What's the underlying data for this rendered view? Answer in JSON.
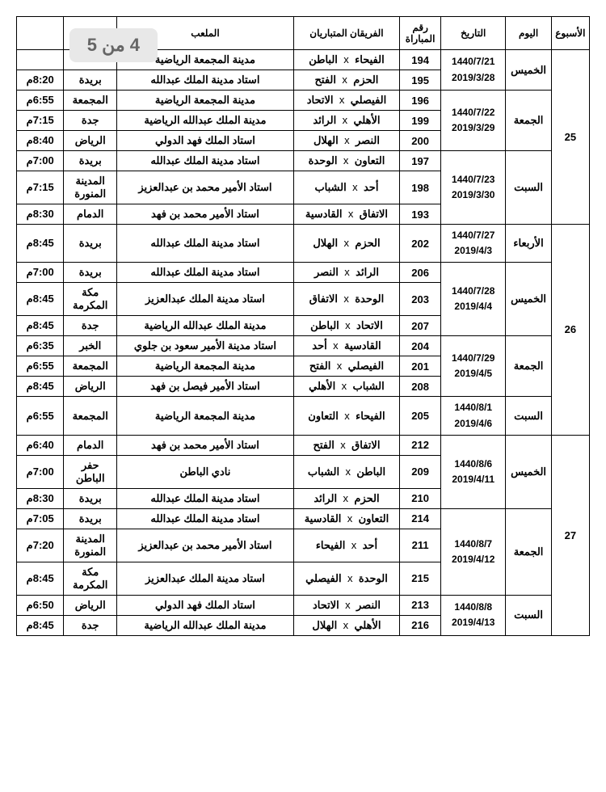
{
  "pageBadge": "4 من 5",
  "headers": {
    "week": "الأسبوع",
    "day": "اليوم",
    "date": "التاريخ",
    "matchNo": "رقم المباراة",
    "teams": "الفريقان المتباريان",
    "stadium": "الملعب",
    "city": "",
    "time": ""
  },
  "rows": [
    {
      "week": "25",
      "day": "الخميس",
      "date1": "1440/7/21",
      "date2": "2019/3/28",
      "no": "194",
      "t1": "الفيحاء",
      "t2": "الباطن",
      "stad": "مدينة المجمعة الرياضية",
      "city": "",
      "time": ""
    },
    {
      "no": "195",
      "t1": "الحزم",
      "t2": "الفتح",
      "stad": "استاد مدينة الملك عبدالله",
      "city": "بريدة",
      "time": "8:20م"
    },
    {
      "day": "الجمعة",
      "date1": "1440/7/22",
      "date2": "2019/3/29",
      "no": "196",
      "t1": "الفيصلي",
      "t2": "الاتحاد",
      "stad": "مدينة المجمعة الرياضية",
      "city": "المجمعة",
      "time": "6:55م"
    },
    {
      "no": "199",
      "t1": "الأهلي",
      "t2": "الرائد",
      "stad": "مدينة الملك عبدالله الرياضية",
      "city": "جدة",
      "time": "7:15م"
    },
    {
      "no": "200",
      "t1": "النصر",
      "t2": "الهلال",
      "stad": "استاد الملك فهد الدولي",
      "city": "الرياض",
      "time": "8:40م"
    },
    {
      "day": "السبت",
      "date1": "1440/7/23",
      "date2": "2019/3/30",
      "no": "197",
      "t1": "التعاون",
      "t2": "الوحدة",
      "stad": "استاد مدينة الملك عبدالله",
      "city": "بريدة",
      "time": "7:00م"
    },
    {
      "no": "198",
      "t1": "أحد",
      "t2": "الشباب",
      "stad": "استاد الأمير محمد بن عبدالعزيز",
      "city": "المدينة المنورة",
      "time": "7:15م"
    },
    {
      "no": "193",
      "t1": "الاتفاق",
      "t2": "القادسية",
      "stad": "استاد الأمير محمد بن فهد",
      "city": "الدمام",
      "time": "8:30م"
    },
    {
      "week": "26",
      "day": "الأربعاء",
      "date1": "1440/7/27",
      "date2": "2019/4/3",
      "no": "202",
      "t1": "الحزم",
      "t2": "الهلال",
      "stad": "استاد مدينة الملك عبدالله",
      "city": "بريدة",
      "time": "8:45م"
    },
    {
      "day": "الخميس",
      "date1": "1440/7/28",
      "date2": "2019/4/4",
      "no": "206",
      "t1": "الرائد",
      "t2": "النصر",
      "stad": "استاد مدينة الملك عبدالله",
      "city": "بريدة",
      "time": "7:00م"
    },
    {
      "no": "203",
      "t1": "الوحدة",
      "t2": "الاتفاق",
      "stad": "استاد مدينة الملك عبدالعزيز",
      "city": "مكة المكرمة",
      "time": "8:45م"
    },
    {
      "no": "207",
      "t1": "الاتحاد",
      "t2": "الباطن",
      "stad": "مدينة الملك عبدالله الرياضية",
      "city": "جدة",
      "time": "8:45م"
    },
    {
      "day": "الجمعة",
      "date1": "1440/7/29",
      "date2": "2019/4/5",
      "no": "204",
      "t1": "القادسية",
      "t2": "أحد",
      "stad": "استاد مدينة الأمير سعود بن جلوي",
      "city": "الخبر",
      "time": "6:35م"
    },
    {
      "no": "201",
      "t1": "الفيصلي",
      "t2": "الفتح",
      "stad": "مدينة المجمعة الرياضية",
      "city": "المجمعة",
      "time": "6:55م"
    },
    {
      "no": "208",
      "t1": "الشباب",
      "t2": "الأهلي",
      "stad": "استاد الأمير فيصل بن فهد",
      "city": "الرياض",
      "time": "8:45م"
    },
    {
      "day": "السبت",
      "date1": "1440/8/1",
      "date2": "2019/4/6",
      "no": "205",
      "t1": "الفيحاء",
      "t2": "التعاون",
      "stad": "مدينة المجمعة الرياضية",
      "city": "المجمعة",
      "time": "6:55م"
    },
    {
      "week": "27",
      "day": "الخميس",
      "date1": "1440/8/6",
      "date2": "2019/4/11",
      "no": "212",
      "t1": "الاتفاق",
      "t2": "الفتح",
      "stad": "استاد الأمير محمد بن فهد",
      "city": "الدمام",
      "time": "6:40م"
    },
    {
      "no": "209",
      "t1": "الباطن",
      "t2": "الشباب",
      "stad": "نادي الباطن",
      "city": "حفر الباطن",
      "time": "7:00م"
    },
    {
      "no": "210",
      "t1": "الحزم",
      "t2": "الرائد",
      "stad": "استاد مدينة الملك عبدالله",
      "city": "بريدة",
      "time": "8:30م"
    },
    {
      "day": "الجمعة",
      "date1": "1440/8/7",
      "date2": "2019/4/12",
      "no": "214",
      "t1": "التعاون",
      "t2": "القادسية",
      "stad": "استاد مدينة الملك عبدالله",
      "city": "بريدة",
      "time": "7:05م"
    },
    {
      "no": "211",
      "t1": "أحد",
      "t2": "الفيحاء",
      "stad": "استاد الأمير محمد بن عبدالعزيز",
      "city": "المدينة المنورة",
      "time": "7:20م"
    },
    {
      "no": "215",
      "t1": "الوحدة",
      "t2": "الفيصلي",
      "stad": "استاد مدينة الملك عبدالعزيز",
      "city": "مكة المكرمة",
      "time": "8:45م"
    },
    {
      "day": "السبت",
      "date1": "1440/8/8",
      "date2": "2019/4/13",
      "no": "213",
      "t1": "النصر",
      "t2": "الاتحاد",
      "stad": "استاد الملك فهد الدولي",
      "city": "الرياض",
      "time": "6:50م"
    },
    {
      "no": "216",
      "t1": "الأهلي",
      "t2": "الهلال",
      "stad": "مدينة الملك عبدالله الرياضية",
      "city": "جدة",
      "time": "8:45م"
    }
  ],
  "spans": {
    "week": [
      8,
      8,
      8
    ],
    "day": [
      [
        2,
        3,
        3
      ],
      [
        1,
        3,
        3,
        1
      ],
      [
        3,
        3,
        2
      ]
    ],
    "date": [
      [
        2,
        3,
        3
      ],
      [
        1,
        3,
        3,
        1
      ],
      [
        3,
        3,
        2
      ]
    ]
  }
}
